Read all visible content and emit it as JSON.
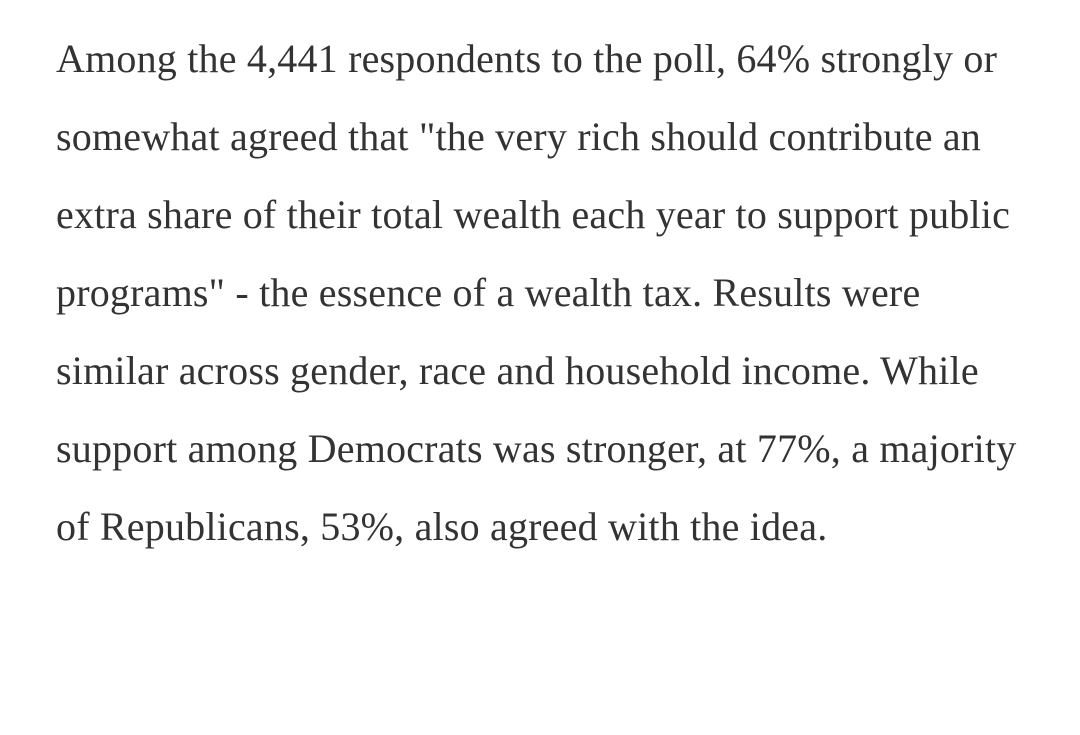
{
  "colors": {
    "background": "#ffffff",
    "text": "#333333"
  },
  "article": {
    "paragraph": "Among the 4,441 respondents to the poll, 64% strongly or somewhat agreed that \"the very rich should contribute an extra share of their total wealth each year to support public programs\" - the essence of a wealth tax. Results were similar across gender, race and household income. While support among Democrats was stronger, at 77%, a majority of Republicans, 53%, also agreed with the idea."
  }
}
